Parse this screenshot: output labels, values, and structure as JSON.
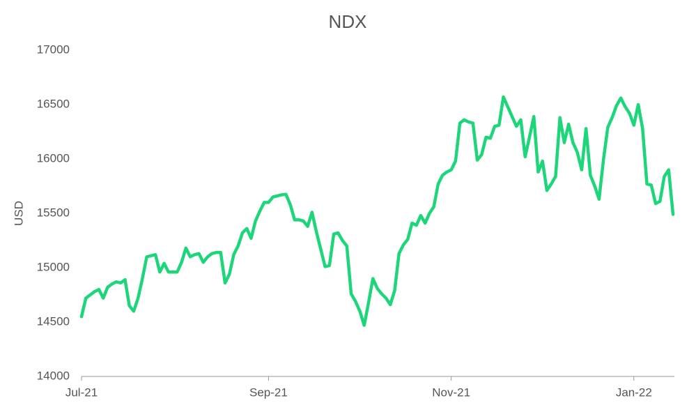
{
  "chart_data": {
    "type": "line",
    "title": "NDX",
    "y_label": "USD",
    "categories": [
      "Jul-21",
      null,
      null,
      null,
      null,
      null,
      null,
      null,
      null,
      null,
      null,
      null,
      null,
      null,
      null,
      null,
      null,
      null,
      null,
      null,
      null,
      null,
      null,
      null,
      null,
      null,
      null,
      null,
      null,
      null,
      null,
      null,
      null,
      null,
      null,
      null,
      null,
      null,
      null,
      null,
      null,
      null,
      null,
      "Sep-21",
      null,
      null,
      null,
      null,
      null,
      null,
      null,
      null,
      null,
      null,
      null,
      null,
      null,
      null,
      null,
      null,
      null,
      null,
      null,
      null,
      null,
      null,
      null,
      null,
      null,
      null,
      null,
      null,
      null,
      null,
      null,
      null,
      null,
      null,
      null,
      null,
      null,
      null,
      null,
      null,
      null,
      "Nov-21",
      null,
      null,
      null,
      null,
      null,
      null,
      null,
      null,
      null,
      null,
      null,
      null,
      null,
      null,
      null,
      null,
      null,
      null,
      null,
      null,
      null,
      null,
      null,
      null,
      null,
      null,
      null,
      null,
      null,
      null,
      null,
      null,
      null,
      null,
      null,
      null,
      null,
      null,
      null,
      null,
      null,
      "Jan-22",
      null,
      null,
      null,
      null,
      null,
      null,
      null,
      null,
      null
    ],
    "series": [
      {
        "name": "NDX",
        "color": "#1ed67a",
        "values": [
          14550,
          14720,
          14750,
          14780,
          14800,
          14720,
          14820,
          14850,
          14870,
          14860,
          14890,
          14650,
          14600,
          14720,
          14900,
          15100,
          15110,
          15120,
          14960,
          15040,
          14960,
          14960,
          14960,
          15050,
          15180,
          15100,
          15120,
          15130,
          15050,
          15100,
          15130,
          15140,
          15140,
          14860,
          14940,
          15120,
          15200,
          15320,
          15360,
          15270,
          15430,
          15520,
          15600,
          15600,
          15650,
          15660,
          15670,
          15675,
          15580,
          15440,
          15440,
          15430,
          15380,
          15510,
          15330,
          15170,
          15010,
          15020,
          15310,
          15320,
          15250,
          15200,
          14760,
          14690,
          14600,
          14470,
          14680,
          14900,
          14810,
          14760,
          14720,
          14660,
          14790,
          15130,
          15210,
          15260,
          15410,
          15390,
          15480,
          15410,
          15500,
          15560,
          15770,
          15850,
          15880,
          15900,
          15980,
          16330,
          16360,
          16340,
          16330,
          15990,
          16040,
          16200,
          16190,
          16300,
          16310,
          16570,
          16480,
          16390,
          16300,
          16360,
          16020,
          16200,
          16390,
          15880,
          15980,
          15710,
          15770,
          15840,
          16380,
          16150,
          16320,
          16150,
          16060,
          15900,
          16280,
          15850,
          15750,
          15630,
          15990,
          16290,
          16380,
          16490,
          16560,
          16480,
          16420,
          16310,
          16500,
          16280,
          15770,
          15760,
          15590,
          15610,
          15840,
          15900,
          15490
        ]
      }
    ],
    "ylim": [
      14000,
      17000
    ],
    "yticks": [
      14000,
      14500,
      15000,
      15500,
      16000,
      16500,
      17000
    ],
    "grid": false
  }
}
